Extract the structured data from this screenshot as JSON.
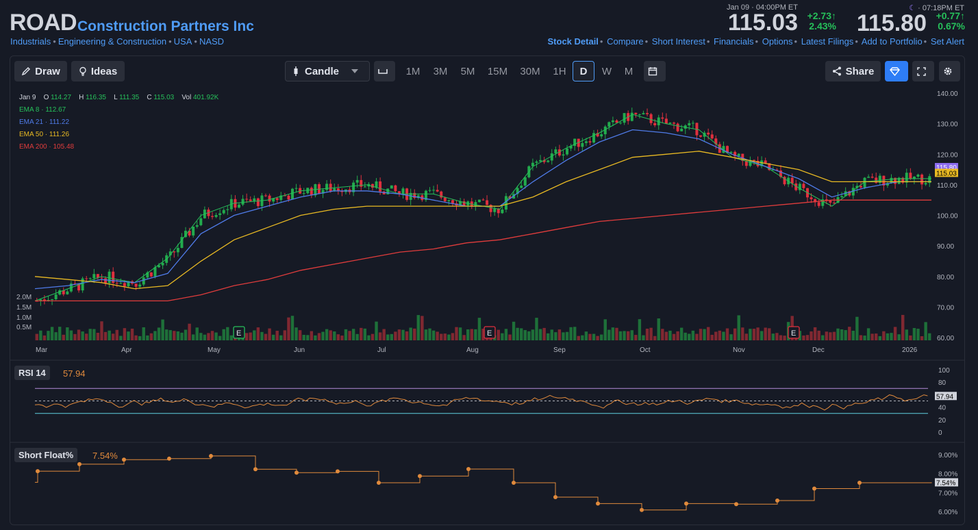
{
  "header": {
    "ticker": "ROAD",
    "company": "Construction Partners Inc",
    "sector": [
      "Industrials",
      "Engineering & Construction",
      "USA",
      "NASD"
    ],
    "close": {
      "time": "Jan 09 · 04:00PM ET",
      "price": "115.03",
      "chg": "+2.73",
      "pct": "2.43%"
    },
    "after": {
      "time": "07:18PM ET",
      "price": "115.80",
      "chg": "+0.77",
      "pct": "0.67%"
    },
    "links": [
      "Stock Detail",
      "Compare",
      "Short Interest",
      "Financials",
      "Options",
      "Latest Filings",
      "Add to Portfolio",
      "Set Alert"
    ]
  },
  "toolbar": {
    "draw": "Draw",
    "ideas": "Ideas",
    "chart_type": "Candle",
    "timeframes": [
      "1M",
      "3M",
      "5M",
      "15M",
      "30M",
      "1H",
      "D",
      "W",
      "M"
    ],
    "active_tf": "D",
    "share": "Share"
  },
  "legend": {
    "date": "Jan 9",
    "o_label": "O",
    "o": "114.27",
    "h_label": "H",
    "h": "116.35",
    "l_label": "L",
    "l": "111.35",
    "c_label": "C",
    "c": "115.03",
    "vol_label": "Vol",
    "vol": "401.92K",
    "ema": [
      {
        "label": "EMA 8",
        "value": "112.67",
        "color": "#26c05a"
      },
      {
        "label": "EMA 21",
        "value": "111.22",
        "color": "#4f7be8"
      },
      {
        "label": "EMA 50",
        "value": "111.26",
        "color": "#e8b923"
      },
      {
        "label": "EMA 200",
        "value": "105.48",
        "color": "#e03c3c"
      }
    ]
  },
  "price_axis": [
    "140.00",
    "130.00",
    "120.00",
    "110.00",
    "100.00",
    "90.00",
    "80.00",
    "70.00",
    "60.00"
  ],
  "price_badges": {
    "after": "115.80",
    "close": "115.03"
  },
  "volume_axis": [
    "2.0M",
    "1.5M",
    "1.0M",
    "0.5M"
  ],
  "months": [
    "Mar",
    "Apr",
    "May",
    "Jun",
    "Jul",
    "Aug",
    "Sep",
    "Oct",
    "Nov",
    "Dec",
    "2026"
  ],
  "earnings_marker": "E",
  "rsi": {
    "label": "RSI 14",
    "value": "57.94",
    "axis": [
      "100",
      "80",
      "60",
      "40",
      "20",
      "0"
    ]
  },
  "short_float": {
    "label": "Short Float%",
    "value": "7.54%",
    "axis": [
      "9.00%",
      "8.00%",
      "7.00%",
      "6.00%"
    ]
  },
  "chart_data": {
    "type": "line",
    "title": "",
    "series": [
      {
        "name": "EMA 8",
        "values": [
          72,
          76,
          80,
          78,
          86,
          100,
          104,
          105,
          108,
          109,
          110,
          107,
          107,
          104,
          102,
          116,
          122,
          127,
          133,
          130,
          128,
          119,
          116,
          109,
          103,
          111,
          112,
          112
        ]
      },
      {
        "name": "EMA 21",
        "values": [
          76,
          77,
          79,
          78,
          81,
          94,
          100,
          103,
          106,
          108,
          108,
          107,
          105,
          103,
          103,
          111,
          118,
          124,
          128,
          127,
          125,
          120,
          116,
          112,
          106,
          109,
          111,
          111
        ]
      },
      {
        "name": "EMA 50",
        "values": [
          80,
          79,
          78,
          76,
          77,
          85,
          92,
          96,
          100,
          102,
          103,
          103,
          103,
          103,
          103,
          106,
          111,
          115,
          119,
          120,
          121,
          119,
          117,
          115,
          111,
          111,
          111,
          111
        ]
      },
      {
        "name": "EMA 200",
        "values": [
          72,
          72,
          72,
          72,
          72,
          74,
          77,
          79,
          82,
          84,
          86,
          88,
          89,
          91,
          92,
          94,
          96,
          98,
          99,
          100,
          101,
          102,
          103,
          104,
          105,
          105,
          105,
          105
        ]
      }
    ],
    "short_float_steps": [
      7.54,
      8.13,
      8.5,
      8.74,
      8.79,
      8.93,
      8.23,
      8.05,
      8.12,
      7.52,
      7.87,
      8.24,
      7.52,
      6.76,
      6.42,
      6.08,
      6.42,
      6.39,
      6.58,
      7.21,
      7.52,
      7.54
    ]
  }
}
